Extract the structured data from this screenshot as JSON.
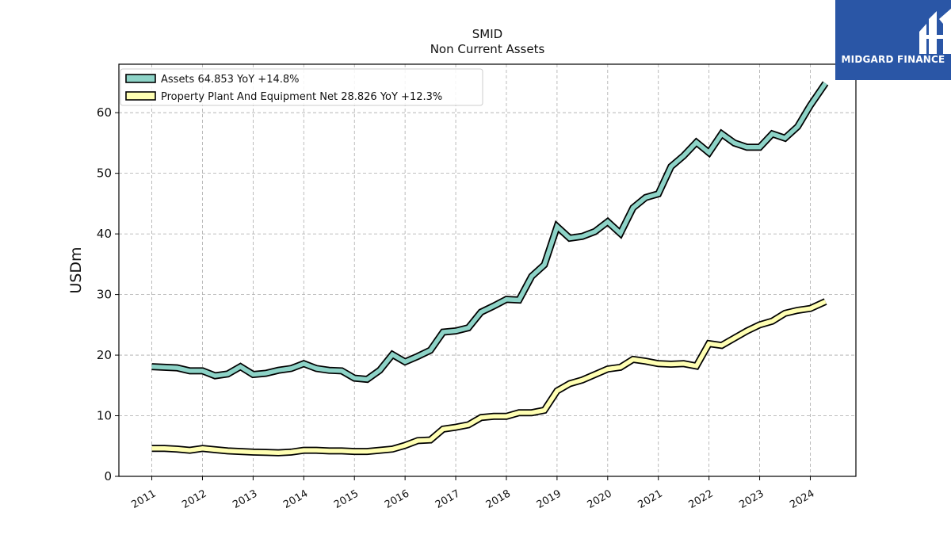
{
  "header": {
    "ticker": "SMID",
    "subtitle": "Non Current  Assets"
  },
  "brand": {
    "name": "MIDGARD FINANCE",
    "bg_color": "#2a56a6"
  },
  "chart_data": {
    "type": "line",
    "title": "SMID",
    "subtitle": "Non Current  Assets",
    "ylabel": "USDm",
    "xlabel": "",
    "ylim": [
      0,
      68
    ],
    "xlim": [
      2010.35,
      2024.9
    ],
    "yticks": [
      0,
      10,
      20,
      30,
      40,
      50,
      60
    ],
    "xticks": [
      2011,
      2012,
      2013,
      2014,
      2015,
      2016,
      2017,
      2018,
      2019,
      2020,
      2021,
      2022,
      2023,
      2024
    ],
    "grid": true,
    "legend_position": "top-left",
    "series": [
      {
        "name": "Assets",
        "legend": "Assets  64.853 YoY +14.8%",
        "color": "#8dd3c7",
        "points": [
          [
            2011.0,
            18.1
          ],
          [
            2011.25,
            18.0
          ],
          [
            2011.5,
            17.9
          ],
          [
            2011.75,
            17.4
          ],
          [
            2012.0,
            17.4
          ],
          [
            2012.25,
            16.6
          ],
          [
            2012.5,
            16.9
          ],
          [
            2012.75,
            18.1
          ],
          [
            2013.0,
            16.8
          ],
          [
            2013.25,
            17.0
          ],
          [
            2013.5,
            17.5
          ],
          [
            2013.75,
            17.8
          ],
          [
            2014.0,
            18.6
          ],
          [
            2014.25,
            17.8
          ],
          [
            2014.5,
            17.5
          ],
          [
            2014.75,
            17.4
          ],
          [
            2015.0,
            16.2
          ],
          [
            2015.25,
            16.0
          ],
          [
            2015.5,
            17.5
          ],
          [
            2015.75,
            20.1
          ],
          [
            2016.0,
            18.9
          ],
          [
            2016.25,
            19.8
          ],
          [
            2016.5,
            20.8
          ],
          [
            2016.75,
            23.8
          ],
          [
            2017.0,
            24.0
          ],
          [
            2017.25,
            24.5
          ],
          [
            2017.5,
            27.1
          ],
          [
            2017.75,
            28.1
          ],
          [
            2018.0,
            29.2
          ],
          [
            2018.25,
            29.1
          ],
          [
            2018.5,
            33.0
          ],
          [
            2018.75,
            34.9
          ],
          [
            2019.0,
            41.2
          ],
          [
            2019.25,
            39.3
          ],
          [
            2019.5,
            39.6
          ],
          [
            2019.75,
            40.4
          ],
          [
            2020.0,
            42.0
          ],
          [
            2020.25,
            40.1
          ],
          [
            2020.5,
            44.3
          ],
          [
            2020.75,
            46.0
          ],
          [
            2021.0,
            46.6
          ],
          [
            2021.25,
            51.1
          ],
          [
            2021.5,
            52.9
          ],
          [
            2021.75,
            55.1
          ],
          [
            2022.0,
            53.4
          ],
          [
            2022.25,
            56.5
          ],
          [
            2022.5,
            55.0
          ],
          [
            2022.75,
            54.3
          ],
          [
            2023.0,
            54.3
          ],
          [
            2023.25,
            56.5
          ],
          [
            2023.5,
            55.8
          ],
          [
            2023.75,
            57.7
          ],
          [
            2024.0,
            61.2
          ],
          [
            2024.3,
            64.85
          ]
        ]
      },
      {
        "name": "Property Plant And Equipment Net",
        "legend": "Property Plant And Equipment Net  28.826 YoY +12.3%",
        "color": "#ffffb3",
        "points": [
          [
            2011.0,
            4.6
          ],
          [
            2011.25,
            4.6
          ],
          [
            2011.5,
            4.5
          ],
          [
            2011.75,
            4.3
          ],
          [
            2012.0,
            4.6
          ],
          [
            2012.25,
            4.4
          ],
          [
            2012.5,
            4.2
          ],
          [
            2012.75,
            4.1
          ],
          [
            2013.0,
            4.0
          ],
          [
            2013.25,
            3.95
          ],
          [
            2013.5,
            3.9
          ],
          [
            2013.75,
            4.0
          ],
          [
            2014.0,
            4.3
          ],
          [
            2014.25,
            4.3
          ],
          [
            2014.5,
            4.2
          ],
          [
            2014.75,
            4.2
          ],
          [
            2015.0,
            4.1
          ],
          [
            2015.25,
            4.1
          ],
          [
            2015.5,
            4.3
          ],
          [
            2015.75,
            4.5
          ],
          [
            2016.0,
            5.1
          ],
          [
            2016.25,
            5.9
          ],
          [
            2016.5,
            6.0
          ],
          [
            2016.75,
            7.8
          ],
          [
            2017.0,
            8.1
          ],
          [
            2017.25,
            8.5
          ],
          [
            2017.5,
            9.7
          ],
          [
            2017.75,
            9.9
          ],
          [
            2018.0,
            9.9
          ],
          [
            2018.25,
            10.5
          ],
          [
            2018.5,
            10.5
          ],
          [
            2018.75,
            10.9
          ],
          [
            2019.0,
            14.1
          ],
          [
            2019.25,
            15.3
          ],
          [
            2019.5,
            15.9
          ],
          [
            2019.75,
            16.8
          ],
          [
            2020.0,
            17.7
          ],
          [
            2020.25,
            18.0
          ],
          [
            2020.5,
            19.3
          ],
          [
            2020.75,
            19.0
          ],
          [
            2021.0,
            18.6
          ],
          [
            2021.25,
            18.5
          ],
          [
            2021.5,
            18.6
          ],
          [
            2021.75,
            18.2
          ],
          [
            2022.0,
            21.9
          ],
          [
            2022.25,
            21.6
          ],
          [
            2022.5,
            22.8
          ],
          [
            2022.75,
            24.0
          ],
          [
            2023.0,
            25.0
          ],
          [
            2023.25,
            25.6
          ],
          [
            2023.5,
            26.9
          ],
          [
            2023.75,
            27.4
          ],
          [
            2024.0,
            27.7
          ],
          [
            2024.3,
            28.83
          ]
        ]
      }
    ]
  }
}
